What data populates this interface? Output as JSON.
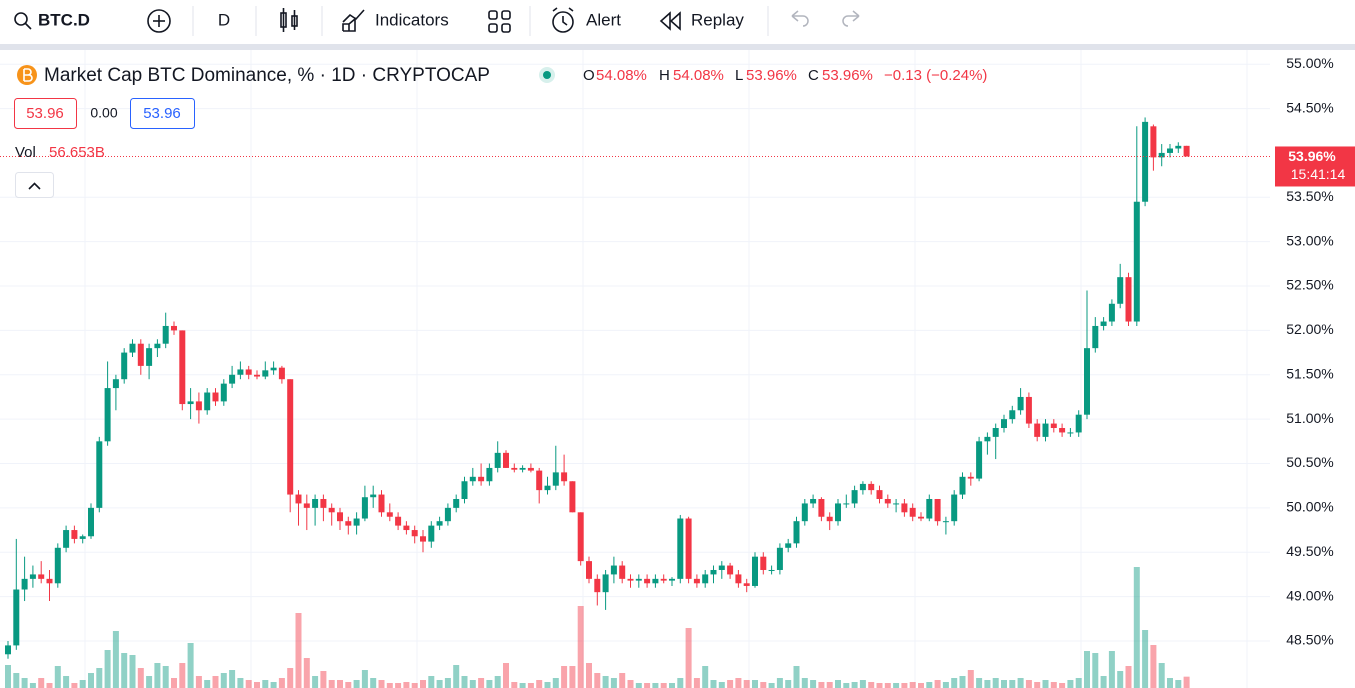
{
  "toolbar": {
    "symbol": "BTC.D",
    "interval": "D",
    "indicators": "Indicators",
    "alert": "Alert",
    "replay": "Replay"
  },
  "legend": {
    "title": "Market Cap BTC Dominance, % · 1D · CRYPTOCAP",
    "o_label": "O",
    "o": "54.08%",
    "h_label": "H",
    "h": "54.08%",
    "l_label": "L",
    "l": "53.96%",
    "c_label": "C",
    "c": "53.96%",
    "change": "−0.13 (−0.24%)",
    "bid": "53.96",
    "spread": "0.00",
    "ask": "53.96",
    "vol_label": "Vol",
    "vol": "56.653B"
  },
  "chart_data": {
    "type": "candlestick",
    "ohlc": [
      [
        48.35,
        48.5,
        48.3,
        48.45
      ],
      [
        48.45,
        49.65,
        48.4,
        49.08
      ],
      [
        49.08,
        49.45,
        48.95,
        49.2
      ],
      [
        49.2,
        49.35,
        49.1,
        49.25
      ],
      [
        49.25,
        49.4,
        49.15,
        49.2
      ],
      [
        49.2,
        49.3,
        48.95,
        49.15
      ],
      [
        49.15,
        49.6,
        49.1,
        49.55
      ],
      [
        49.55,
        49.8,
        49.5,
        49.75
      ],
      [
        49.75,
        49.8,
        49.6,
        49.65
      ],
      [
        49.65,
        49.7,
        49.6,
        49.68
      ],
      [
        49.68,
        50.05,
        49.65,
        50.0
      ],
      [
        50.0,
        50.8,
        49.95,
        50.75
      ],
      [
        50.75,
        51.65,
        50.7,
        51.35
      ],
      [
        51.35,
        51.5,
        51.1,
        51.45
      ],
      [
        51.45,
        51.8,
        51.4,
        51.75
      ],
      [
        51.75,
        51.9,
        51.7,
        51.85
      ],
      [
        51.85,
        51.9,
        51.5,
        51.6
      ],
      [
        51.6,
        51.85,
        51.45,
        51.8
      ],
      [
        51.8,
        51.9,
        51.7,
        51.85
      ],
      [
        51.85,
        52.2,
        51.8,
        52.05
      ],
      [
        52.05,
        52.1,
        51.95,
        52.0
      ],
      [
        52.0,
        52.0,
        51.1,
        51.17
      ],
      [
        51.17,
        51.35,
        51.0,
        51.2
      ],
      [
        51.2,
        51.3,
        50.95,
        51.1
      ],
      [
        51.1,
        51.35,
        51.05,
        51.3
      ],
      [
        51.3,
        51.35,
        51.15,
        51.2
      ],
      [
        51.2,
        51.45,
        51.15,
        51.4
      ],
      [
        51.4,
        51.6,
        51.35,
        51.5
      ],
      [
        51.5,
        51.65,
        51.45,
        51.56
      ],
      [
        51.56,
        51.6,
        51.45,
        51.5
      ],
      [
        51.5,
        51.55,
        51.45,
        51.48
      ],
      [
        51.48,
        51.65,
        51.45,
        51.55
      ],
      [
        51.55,
        51.65,
        51.5,
        51.58
      ],
      [
        51.58,
        51.6,
        51.4,
        51.45
      ],
      [
        51.45,
        51.45,
        49.95,
        50.15
      ],
      [
        50.15,
        50.2,
        49.8,
        50.05
      ],
      [
        50.05,
        50.15,
        49.75,
        50.0
      ],
      [
        50.0,
        50.15,
        49.8,
        50.1
      ],
      [
        50.1,
        50.15,
        49.85,
        50.0
      ],
      [
        50.0,
        50.05,
        49.8,
        49.95
      ],
      [
        49.95,
        50.0,
        49.75,
        49.85
      ],
      [
        49.85,
        49.9,
        49.7,
        49.8
      ],
      [
        49.8,
        49.95,
        49.7,
        49.88
      ],
      [
        49.88,
        50.25,
        49.85,
        50.12
      ],
      [
        50.12,
        50.25,
        50.0,
        50.15
      ],
      [
        50.15,
        50.2,
        49.9,
        49.95
      ],
      [
        49.95,
        50.05,
        49.85,
        49.9
      ],
      [
        49.9,
        49.95,
        49.75,
        49.8
      ],
      [
        49.8,
        49.85,
        49.7,
        49.75
      ],
      [
        49.75,
        49.8,
        49.6,
        49.68
      ],
      [
        49.68,
        49.75,
        49.5,
        49.62
      ],
      [
        49.62,
        49.85,
        49.55,
        49.8
      ],
      [
        49.8,
        49.9,
        49.75,
        49.85
      ],
      [
        49.85,
        50.05,
        49.8,
        50.0
      ],
      [
        50.0,
        50.15,
        49.95,
        50.1
      ],
      [
        50.1,
        50.35,
        50.05,
        50.3
      ],
      [
        50.3,
        50.45,
        50.25,
        50.35
      ],
      [
        50.35,
        50.5,
        50.25,
        50.3
      ],
      [
        50.3,
        50.5,
        50.25,
        50.45
      ],
      [
        50.45,
        50.75,
        50.4,
        50.62
      ],
      [
        50.62,
        50.65,
        50.45,
        50.45
      ],
      [
        50.45,
        50.5,
        50.4,
        50.43
      ],
      [
        50.43,
        50.48,
        50.4,
        50.45
      ],
      [
        50.45,
        50.5,
        50.4,
        50.42
      ],
      [
        50.42,
        50.45,
        50.05,
        50.2
      ],
      [
        50.2,
        50.35,
        50.15,
        50.25
      ],
      [
        50.25,
        50.7,
        50.2,
        50.4
      ],
      [
        50.4,
        50.6,
        50.25,
        50.3
      ],
      [
        50.3,
        50.3,
        49.95,
        49.95
      ],
      [
        49.95,
        49.95,
        49.35,
        49.4
      ],
      [
        49.4,
        49.45,
        49.15,
        49.2
      ],
      [
        49.2,
        49.25,
        48.9,
        49.05
      ],
      [
        49.05,
        49.3,
        48.85,
        49.25
      ],
      [
        49.25,
        49.45,
        49.15,
        49.35
      ],
      [
        49.35,
        49.4,
        49.15,
        49.2
      ],
      [
        49.2,
        49.25,
        49.1,
        49.18
      ],
      [
        49.18,
        49.25,
        49.1,
        49.2
      ],
      [
        49.2,
        49.25,
        49.1,
        49.15
      ],
      [
        49.15,
        49.25,
        49.1,
        49.2
      ],
      [
        49.2,
        49.25,
        49.15,
        49.18
      ],
      [
        49.18,
        49.22,
        49.12,
        49.2
      ],
      [
        49.2,
        49.92,
        49.15,
        49.88
      ],
      [
        49.88,
        49.9,
        49.15,
        49.2
      ],
      [
        49.2,
        49.25,
        49.1,
        49.15
      ],
      [
        49.15,
        49.3,
        49.1,
        49.25
      ],
      [
        49.25,
        49.35,
        49.15,
        49.3
      ],
      [
        49.3,
        49.4,
        49.2,
        49.35
      ],
      [
        49.35,
        49.38,
        49.2,
        49.25
      ],
      [
        49.25,
        49.3,
        49.1,
        49.15
      ],
      [
        49.15,
        49.2,
        49.05,
        49.12
      ],
      [
        49.12,
        49.5,
        49.1,
        49.45
      ],
      [
        49.45,
        49.5,
        49.25,
        49.3
      ],
      [
        49.3,
        49.35,
        49.25,
        49.3
      ],
      [
        49.3,
        49.6,
        49.25,
        49.55
      ],
      [
        49.55,
        49.65,
        49.5,
        49.6
      ],
      [
        49.6,
        49.9,
        49.55,
        49.85
      ],
      [
        49.85,
        50.1,
        49.8,
        50.05
      ],
      [
        50.05,
        50.15,
        50.0,
        50.1
      ],
      [
        50.1,
        50.12,
        49.85,
        49.9
      ],
      [
        49.9,
        49.95,
        49.75,
        49.85
      ],
      [
        49.85,
        50.1,
        49.8,
        50.05
      ],
      [
        50.05,
        50.15,
        50.0,
        50.05
      ],
      [
        50.05,
        50.25,
        50.0,
        50.2
      ],
      [
        50.2,
        50.3,
        50.15,
        50.27
      ],
      [
        50.27,
        50.3,
        50.15,
        50.2
      ],
      [
        50.2,
        50.25,
        50.05,
        50.1
      ],
      [
        50.1,
        50.15,
        50.0,
        50.05
      ],
      [
        50.05,
        50.1,
        49.95,
        50.05
      ],
      [
        50.05,
        50.1,
        49.9,
        49.95
      ],
      [
        50.0,
        50.05,
        49.85,
        49.9
      ],
      [
        49.9,
        49.95,
        49.85,
        49.88
      ],
      [
        49.88,
        50.15,
        49.85,
        50.1
      ],
      [
        50.1,
        50.1,
        49.8,
        49.85
      ],
      [
        49.85,
        49.9,
        49.7,
        49.85
      ],
      [
        49.85,
        50.2,
        49.8,
        50.15
      ],
      [
        50.15,
        50.4,
        50.1,
        50.35
      ],
      [
        50.35,
        50.4,
        50.25,
        50.33
      ],
      [
        50.33,
        50.8,
        50.3,
        50.75
      ],
      [
        50.75,
        50.85,
        50.6,
        50.8
      ],
      [
        50.8,
        50.95,
        50.55,
        50.9
      ],
      [
        50.9,
        51.05,
        50.85,
        51.0
      ],
      [
        51.0,
        51.15,
        50.95,
        51.1
      ],
      [
        51.1,
        51.35,
        51.05,
        51.25
      ],
      [
        51.25,
        51.3,
        50.9,
        50.95
      ],
      [
        50.95,
        51.0,
        50.75,
        50.8
      ],
      [
        50.8,
        51.0,
        50.75,
        50.95
      ],
      [
        50.95,
        51.0,
        50.85,
        50.9
      ],
      [
        50.9,
        50.95,
        50.8,
        50.85
      ],
      [
        50.85,
        50.9,
        50.8,
        50.85
      ],
      [
        50.85,
        51.1,
        50.8,
        51.05
      ],
      [
        51.05,
        52.45,
        51.0,
        51.8
      ],
      [
        51.8,
        52.15,
        51.75,
        52.05
      ],
      [
        52.05,
        52.15,
        52.0,
        52.1
      ],
      [
        52.1,
        52.35,
        52.05,
        52.3
      ],
      [
        52.3,
        52.75,
        52.25,
        52.6
      ],
      [
        52.6,
        52.65,
        52.05,
        52.1
      ],
      [
        52.1,
        54.3,
        52.05,
        53.45
      ],
      [
        53.45,
        54.4,
        53.4,
        54.35
      ],
      [
        54.3,
        54.32,
        53.8,
        53.95
      ],
      [
        53.95,
        54.1,
        53.85,
        54.0
      ],
      [
        54.0,
        54.1,
        53.95,
        54.05
      ],
      [
        54.05,
        54.12,
        54.0,
        54.08
      ],
      [
        54.08,
        54.08,
        53.96,
        53.96
      ]
    ],
    "volume": [
      115,
      75,
      50,
      25,
      50,
      25,
      110,
      60,
      25,
      40,
      75,
      100,
      190,
      285,
      175,
      165,
      100,
      60,
      125,
      110,
      50,
      125,
      225,
      60,
      40,
      60,
      75,
      90,
      50,
      40,
      30,
      40,
      30,
      50,
      100,
      375,
      150,
      60,
      85,
      40,
      40,
      30,
      40,
      90,
      50,
      40,
      25,
      25,
      30,
      25,
      40,
      60,
      40,
      50,
      115,
      60,
      40,
      50,
      40,
      60,
      125,
      30,
      25,
      25,
      40,
      30,
      50,
      110,
      110,
      410,
      125,
      75,
      60,
      50,
      75,
      40,
      25,
      25,
      25,
      25,
      25,
      50,
      300,
      50,
      110,
      40,
      30,
      40,
      50,
      40,
      40,
      30,
      25,
      50,
      40,
      110,
      50,
      40,
      30,
      30,
      40,
      25,
      30,
      40,
      30,
      25,
      25,
      25,
      25,
      30,
      25,
      30,
      40,
      30,
      50,
      60,
      90,
      50,
      40,
      50,
      40,
      40,
      50,
      40,
      30,
      40,
      30,
      25,
      40,
      50,
      185,
      175,
      60,
      185,
      85,
      110,
      605,
      290,
      215,
      125,
      50,
      40,
      56.653
    ],
    "up_color": "#089981",
    "down_color": "#f23645",
    "ylim": [
      47.97,
      55.16
    ],
    "yticks": [
      {
        "value": 48.5,
        "label": "48.50%"
      },
      {
        "value": 49,
        "label": "49.00%"
      },
      {
        "value": 49.5,
        "label": "49.50%"
      },
      {
        "value": 50,
        "label": "50.00%"
      },
      {
        "value": 50.5,
        "label": "50.50%"
      },
      {
        "value": 51,
        "label": "51.00%"
      },
      {
        "value": 51.5,
        "label": "51.50%"
      },
      {
        "value": 52,
        "label": "52.00%"
      },
      {
        "value": 52.5,
        "label": "52.50%"
      },
      {
        "value": 53,
        "label": "53.00%"
      },
      {
        "value": 53.5,
        "label": "53.50%"
      },
      {
        "value": 54.5,
        "label": "54.50%"
      },
      {
        "value": 55,
        "label": "55.00%"
      }
    ],
    "last_price": {
      "value": 53.96,
      "label": "53.96%"
    },
    "countdown": "15:41:14",
    "grid": true
  }
}
